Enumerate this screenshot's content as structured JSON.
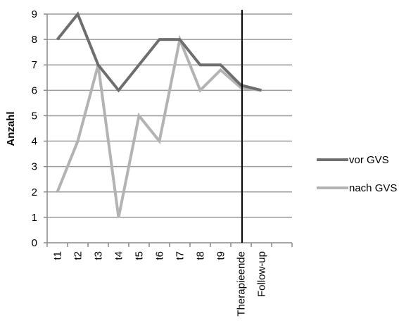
{
  "chart_data": {
    "type": "line",
    "title": "",
    "xlabel": "",
    "ylabel": "Anzahl",
    "ylim": [
      0,
      9
    ],
    "yticks": [
      "0",
      "1",
      "2",
      "3",
      "4",
      "5",
      "6",
      "7",
      "8",
      "9"
    ],
    "categories": [
      "t1",
      "t2",
      "t3",
      "t4",
      "t5",
      "t6",
      "t7",
      "t8",
      "t9",
      "Therapieende",
      "Follow-up"
    ],
    "grid": true,
    "legend_position": "right",
    "series": [
      {
        "name": "vor GVS",
        "color": "#6e6e6e",
        "values": [
          8,
          9,
          7,
          6,
          7,
          8,
          8,
          7,
          7,
          6.2,
          6
        ]
      },
      {
        "name": "nach GVS",
        "color": "#b3b3b3",
        "values": [
          2,
          4,
          7,
          1,
          5,
          4,
          8,
          6,
          6.8,
          6.1,
          6
        ]
      }
    ],
    "annotations": [
      {
        "type": "vertical-line",
        "between": [
          "t9",
          "Therapieende"
        ]
      }
    ]
  }
}
